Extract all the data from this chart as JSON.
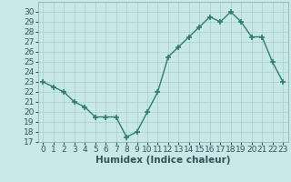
{
  "x": [
    0,
    1,
    2,
    3,
    4,
    5,
    6,
    7,
    8,
    9,
    10,
    11,
    12,
    13,
    14,
    15,
    16,
    17,
    18,
    19,
    20,
    21,
    22,
    23
  ],
  "y": [
    23,
    22.5,
    22,
    21,
    20.5,
    19.5,
    19.5,
    19.5,
    17.5,
    18,
    20,
    22,
    25.5,
    26.5,
    27.5,
    28.5,
    29.5,
    29,
    30,
    29,
    27.5,
    27.5,
    25,
    23
  ],
  "xlabel": "Humidex (Indice chaleur)",
  "ylim": [
    17,
    31
  ],
  "xlim": [
    -0.5,
    23.5
  ],
  "yticks": [
    17,
    18,
    19,
    20,
    21,
    22,
    23,
    24,
    25,
    26,
    27,
    28,
    29,
    30
  ],
  "xticks": [
    0,
    1,
    2,
    3,
    4,
    5,
    6,
    7,
    8,
    9,
    10,
    11,
    12,
    13,
    14,
    15,
    16,
    17,
    18,
    19,
    20,
    21,
    22,
    23
  ],
  "line_color": "#2e7d6e",
  "marker_color": "#2e7d6e",
  "bg_color": "#c8e8e8",
  "grid_color": "#a8cccc",
  "label_fontsize": 7.5,
  "tick_fontsize": 6.5
}
